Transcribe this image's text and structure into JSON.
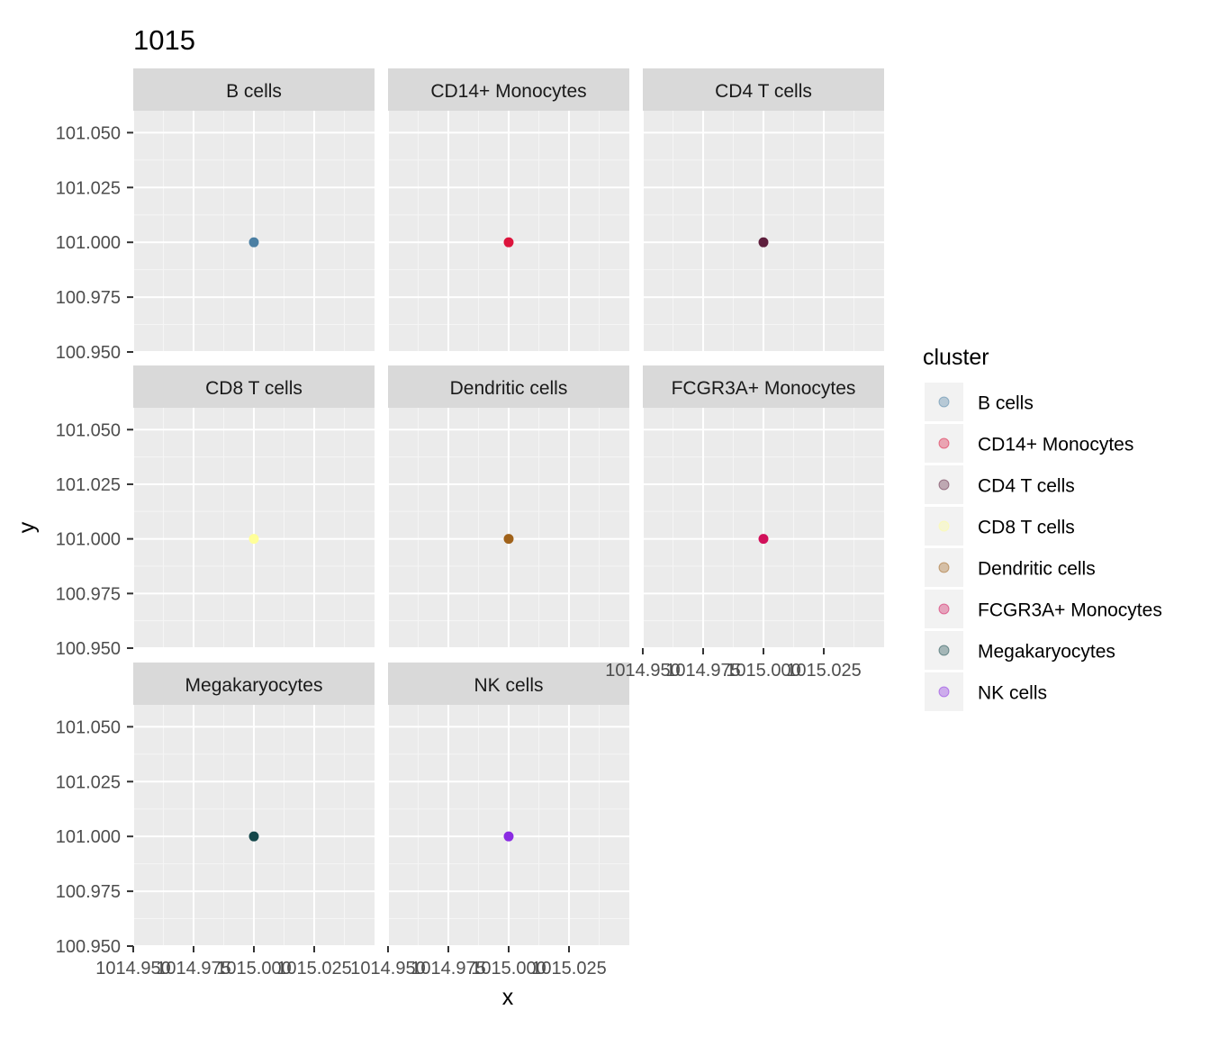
{
  "chart_data": {
    "type": "scatter",
    "title": "1015",
    "xlabel": "x",
    "ylabel": "y",
    "facet_by": "cluster",
    "xlim": [
      1014.95,
      1015.05
    ],
    "ylim": [
      100.95,
      101.06
    ],
    "x_ticks": [
      1014.95,
      1014.975,
      1015.0,
      1015.025
    ],
    "x_tick_labels": [
      "1014.950",
      "1014.975",
      "1015.000",
      "1015.025"
    ],
    "y_ticks": [
      100.95,
      100.975,
      101.0,
      101.025,
      101.05
    ],
    "y_tick_labels": [
      "100.950",
      "100.975",
      "101.000",
      "101.025",
      "101.050"
    ],
    "grid": true,
    "legend_placement": "right",
    "legend_title": "cluster",
    "panels": [
      {
        "name": "B cells",
        "color": "#4B7FA3",
        "points": [
          {
            "x": 1015.0,
            "y": 101.0
          }
        ]
      },
      {
        "name": "CD14+ Monocytes",
        "color": "#DC143C",
        "points": [
          {
            "x": 1015.0,
            "y": 101.0
          }
        ]
      },
      {
        "name": "CD4 T cells",
        "color": "#5E1F3D",
        "points": [
          {
            "x": 1015.0,
            "y": 101.0
          }
        ]
      },
      {
        "name": "CD8 T cells",
        "color": "#FFFF99",
        "points": [
          {
            "x": 1015.0,
            "y": 101.0
          }
        ]
      },
      {
        "name": "Dendritic cells",
        "color": "#A0621A",
        "points": [
          {
            "x": 1015.0,
            "y": 101.0
          }
        ]
      },
      {
        "name": "FCGR3A+ Monocytes",
        "color": "#D1105A",
        "points": [
          {
            "x": 1015.0,
            "y": 101.0
          }
        ]
      },
      {
        "name": "Megakaryocytes",
        "color": "#14474A",
        "points": [
          {
            "x": 1015.0,
            "y": 101.0
          }
        ]
      },
      {
        "name": "NK cells",
        "color": "#8A2BE2",
        "points": [
          {
            "x": 1015.0,
            "y": 101.0
          }
        ]
      }
    ]
  }
}
